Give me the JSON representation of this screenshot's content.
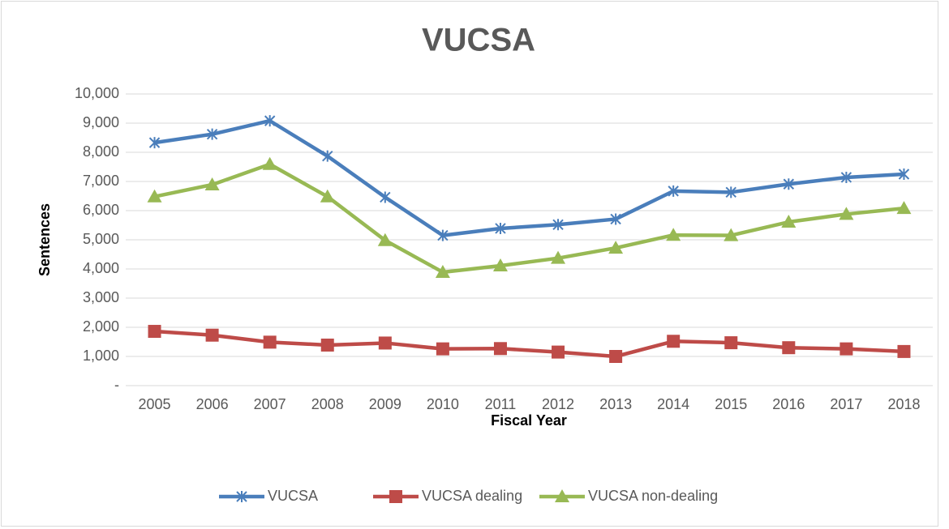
{
  "chart_data": {
    "type": "line",
    "title": "VUCSA",
    "x_label": "Fiscal Year",
    "y_label": "Sentences",
    "categories": [
      "2005",
      "2006",
      "2007",
      "2008",
      "2009",
      "2010",
      "2011",
      "2012",
      "2013",
      "2014",
      "2015",
      "2016",
      "2017",
      "2018"
    ],
    "series": [
      {
        "name": "VUCSA",
        "color": "#4a7ebb",
        "marker": "star",
        "values": [
          8330,
          8620,
          9080,
          7870,
          6460,
          5150,
          5390,
          5520,
          5710,
          6670,
          6630,
          6910,
          7140,
          7250
        ]
      },
      {
        "name": "VUCSA dealing",
        "color": "#be4b48",
        "marker": "square",
        "values": [
          1860,
          1730,
          1490,
          1390,
          1460,
          1260,
          1270,
          1150,
          1000,
          1520,
          1470,
          1300,
          1260,
          1170
        ]
      },
      {
        "name": "VUCSA non-dealing",
        "color": "#98b954",
        "marker": "triangle",
        "values": [
          6480,
          6890,
          7590,
          6480,
          4980,
          3890,
          4110,
          4370,
          4720,
          5160,
          5150,
          5610,
          5880,
          6080
        ]
      }
    ],
    "ylim": [
      0,
      10000
    ],
    "yticks": [
      {
        "value": 0,
        "label": "-"
      },
      {
        "value": 1000,
        "label": "1,000"
      },
      {
        "value": 2000,
        "label": "2,000"
      },
      {
        "value": 3000,
        "label": "3,000"
      },
      {
        "value": 4000,
        "label": "4,000"
      },
      {
        "value": 5000,
        "label": "5,000"
      },
      {
        "value": 6000,
        "label": "6,000"
      },
      {
        "value": 7000,
        "label": "7,000"
      },
      {
        "value": 8000,
        "label": "8,000"
      },
      {
        "value": 9000,
        "label": "9,000"
      },
      {
        "value": 10000,
        "label": "10,000"
      }
    ],
    "grid": true,
    "legend": "bottom"
  }
}
